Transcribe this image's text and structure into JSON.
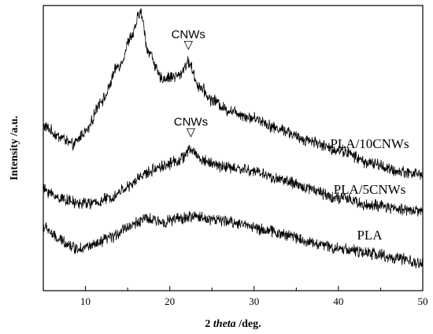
{
  "chart_data": {
    "type": "line",
    "xlabel_prefix": "2 ",
    "xlabel_italic": "theta",
    "xlabel_suffix": " /deg.",
    "ylabel": "Intensity /a.u.",
    "xlim": [
      5,
      50
    ],
    "x_ticks": [
      10,
      20,
      30,
      40,
      50
    ],
    "y_ticks_labeled": false,
    "grid": false,
    "series": [
      {
        "name": "PLA/10CNWs",
        "x": [
          5,
          7,
          8.5,
          10,
          12,
          14,
          15.5,
          16.5,
          17.5,
          19,
          21,
          22.2,
          23.5,
          25,
          27,
          30,
          33,
          36,
          40,
          44,
          47,
          50
        ],
        "y": [
          0.62,
          0.58,
          0.55,
          0.6,
          0.72,
          0.85,
          0.96,
          1.05,
          0.9,
          0.8,
          0.81,
          0.86,
          0.77,
          0.72,
          0.68,
          0.65,
          0.61,
          0.57,
          0.53,
          0.48,
          0.45,
          0.44
        ]
      },
      {
        "name": "PLA/5CNWs",
        "x": [
          5,
          7,
          9,
          11,
          13,
          15,
          17,
          19,
          21,
          22.5,
          24,
          26,
          28,
          30,
          33,
          36,
          40,
          44,
          47,
          50
        ],
        "y": [
          0.38,
          0.35,
          0.33,
          0.33,
          0.35,
          0.39,
          0.44,
          0.47,
          0.49,
          0.53,
          0.49,
          0.47,
          0.46,
          0.45,
          0.42,
          0.39,
          0.35,
          0.32,
          0.31,
          0.3
        ]
      },
      {
        "name": "PLA",
        "x": [
          5,
          7,
          9,
          11,
          13,
          15,
          17,
          19,
          21,
          23,
          25,
          27,
          29,
          31,
          34,
          37,
          40,
          44,
          47,
          50
        ],
        "y": [
          0.24,
          0.19,
          0.16,
          0.17,
          0.2,
          0.24,
          0.27,
          0.26,
          0.27,
          0.28,
          0.27,
          0.26,
          0.25,
          0.23,
          0.21,
          0.18,
          0.16,
          0.14,
          0.12,
          0.1
        ]
      }
    ],
    "annotations": [
      {
        "text": "PLA",
        "x": 16.5,
        "series": "PLA/10CNWs"
      },
      {
        "text": "CNWs",
        "x": 22.2,
        "series": "PLA/10CNWs"
      },
      {
        "text": "CNWs",
        "x": 22.5,
        "series": "PLA/5CNWs"
      }
    ],
    "marker_glyph": "▽"
  }
}
